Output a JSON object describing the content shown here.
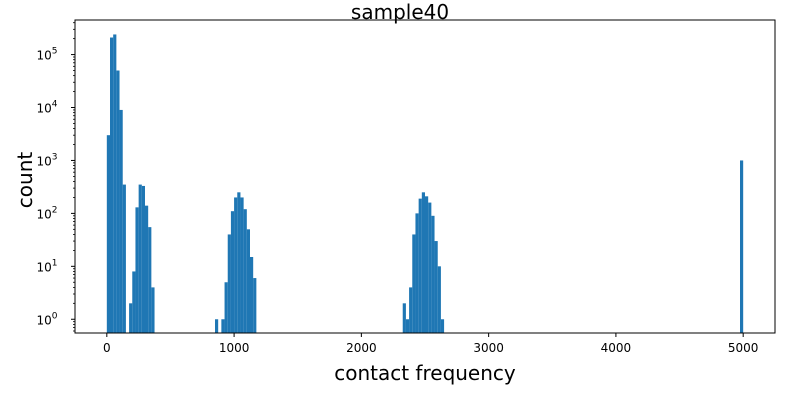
{
  "chart_data": {
    "type": "bar",
    "title": "sample40",
    "xlabel": "contact frequency",
    "ylabel": "count",
    "xlim": [
      -250,
      5250
    ],
    "ylim": [
      0.55,
      450000
    ],
    "yscale": "log",
    "grid": false,
    "bar_color": "#1f77b4",
    "bin_width": 25,
    "x_ticks": [
      {
        "value": 0,
        "label": "0"
      },
      {
        "value": 1000,
        "label": "1000"
      },
      {
        "value": 2000,
        "label": "2000"
      },
      {
        "value": 3000,
        "label": "3000"
      },
      {
        "value": 4000,
        "label": "4000"
      },
      {
        "value": 5000,
        "label": "5000"
      }
    ],
    "y_ticks": [
      {
        "value": 1,
        "base": "10",
        "exp": "0"
      },
      {
        "value": 10,
        "base": "10",
        "exp": "1"
      },
      {
        "value": 100,
        "base": "10",
        "exp": "2"
      },
      {
        "value": 1000,
        "base": "10",
        "exp": "3"
      },
      {
        "value": 10000,
        "base": "10",
        "exp": "4"
      },
      {
        "value": 100000,
        "base": "10",
        "exp": "5"
      }
    ],
    "bins": [
      {
        "x": 0,
        "count": 3000
      },
      {
        "x": 25,
        "count": 210000
      },
      {
        "x": 50,
        "count": 240000
      },
      {
        "x": 75,
        "count": 50000
      },
      {
        "x": 100,
        "count": 9000
      },
      {
        "x": 125,
        "count": 350
      },
      {
        "x": 175,
        "count": 2
      },
      {
        "x": 200,
        "count": 8
      },
      {
        "x": 225,
        "count": 130
      },
      {
        "x": 250,
        "count": 350
      },
      {
        "x": 275,
        "count": 330
      },
      {
        "x": 300,
        "count": 140
      },
      {
        "x": 325,
        "count": 55
      },
      {
        "x": 350,
        "count": 4
      },
      {
        "x": 850,
        "count": 1
      },
      {
        "x": 900,
        "count": 1
      },
      {
        "x": 925,
        "count": 5
      },
      {
        "x": 950,
        "count": 40
      },
      {
        "x": 975,
        "count": 110
      },
      {
        "x": 1000,
        "count": 200
      },
      {
        "x": 1025,
        "count": 250
      },
      {
        "x": 1050,
        "count": 200
      },
      {
        "x": 1075,
        "count": 120
      },
      {
        "x": 1100,
        "count": 50
      },
      {
        "x": 1125,
        "count": 15
      },
      {
        "x": 1150,
        "count": 6
      },
      {
        "x": 2325,
        "count": 2
      },
      {
        "x": 2350,
        "count": 1
      },
      {
        "x": 2375,
        "count": 4
      },
      {
        "x": 2400,
        "count": 40
      },
      {
        "x": 2425,
        "count": 100
      },
      {
        "x": 2450,
        "count": 190
      },
      {
        "x": 2475,
        "count": 250
      },
      {
        "x": 2500,
        "count": 210
      },
      {
        "x": 2525,
        "count": 160
      },
      {
        "x": 2550,
        "count": 90
      },
      {
        "x": 2575,
        "count": 30
      },
      {
        "x": 2600,
        "count": 10
      },
      {
        "x": 2625,
        "count": 1
      },
      {
        "x": 4975,
        "count": 1000
      }
    ]
  }
}
